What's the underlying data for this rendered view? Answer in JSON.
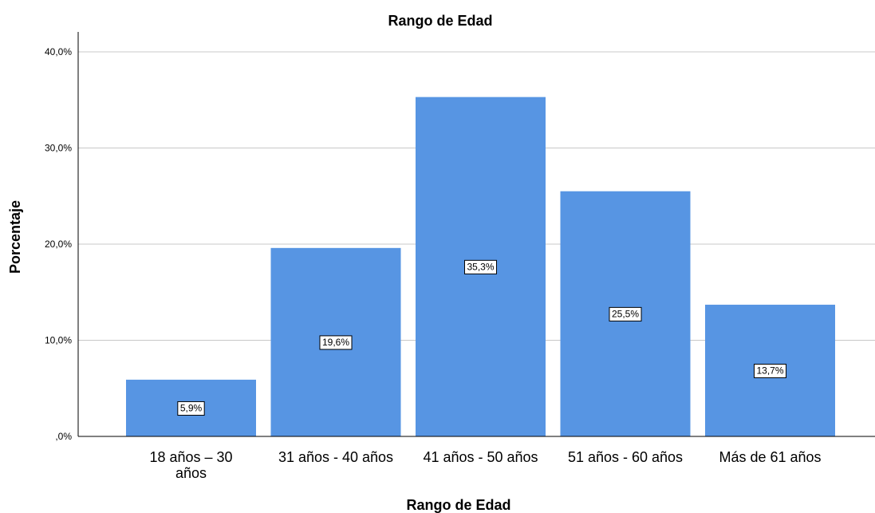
{
  "chart_data": {
    "type": "bar",
    "title": "Rango de Edad",
    "xlabel": "Rango de Edad",
    "ylabel": "Porcentaje",
    "categories": [
      [
        "18 años – 30",
        "años"
      ],
      [
        "31 años - 40 años"
      ],
      [
        "41 años - 50 años"
      ],
      [
        "51 años - 60 años"
      ],
      [
        "Más de 61 años"
      ]
    ],
    "values": [
      5.9,
      19.6,
      35.3,
      25.5,
      13.7
    ],
    "data_labels": [
      "5,9%",
      "19,6%",
      "35,3%",
      "25,5%",
      "13,7%"
    ],
    "y_ticks": [
      {
        "value": 0,
        "label": ",0%"
      },
      {
        "value": 10,
        "label": "10,0%"
      },
      {
        "value": 20,
        "label": "20,0%"
      },
      {
        "value": 30,
        "label": "30,0%"
      },
      {
        "value": 40,
        "label": "40,0%"
      }
    ],
    "ylim": [
      0,
      40
    ],
    "grid": true,
    "legend": "none",
    "colors": {
      "bar": "#5795e3",
      "gridline": "#c8c8c8",
      "axis": "#000000"
    }
  }
}
